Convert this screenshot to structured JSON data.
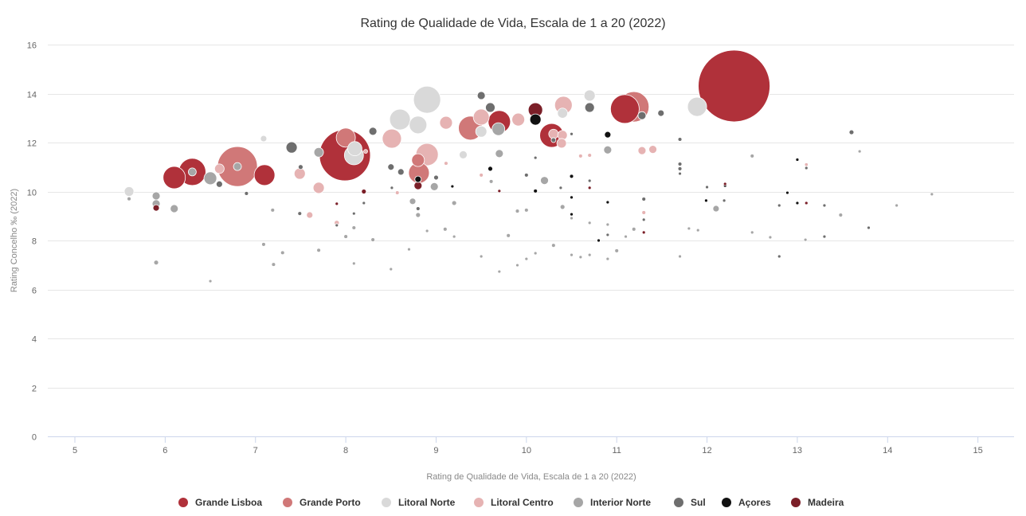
{
  "chart_data": {
    "type": "bubble",
    "title": "Rating de Qualidade de Vida, Escala de 1 a 20 (2022)",
    "xlabel": "Rating de Qualidade de Vida, Escala de 1 a 20 (2022)",
    "ylabel": "Rating Concelho ‰ (2022)",
    "xlim": [
      4.7,
      15.4
    ],
    "ylim": [
      0,
      16
    ],
    "xticks": [
      "5",
      "6",
      "7",
      "8",
      "9",
      "10",
      "11",
      "12",
      "13",
      "14",
      "15"
    ],
    "yticks": [
      "0",
      "2",
      "4",
      "6",
      "8",
      "10",
      "12",
      "14",
      "16"
    ],
    "grid": "horizontal",
    "legend": "bottom",
    "series": [
      {
        "name": "Grande Lisboa",
        "color": "#b0313a",
        "points": [
          [
            12.3,
            14.31,
            2025
          ],
          [
            7.99,
            11.48,
            1024
          ],
          [
            6.1,
            10.57,
            196
          ],
          [
            6.3,
            10.8,
            289
          ],
          [
            7.1,
            10.67,
            169
          ],
          [
            10.28,
            12.29,
            225
          ],
          [
            9.7,
            12.85,
            196
          ],
          [
            11.09,
            13.37,
            324
          ]
        ]
      },
      {
        "name": "Grande Porto",
        "color": "#d07878",
        "points": [
          [
            6.8,
            11.02,
            625
          ],
          [
            11.19,
            13.46,
            361
          ],
          [
            9.38,
            12.59,
            225
          ],
          [
            8.81,
            10.76,
            169
          ],
          [
            8.8,
            11.28,
            64
          ],
          [
            8.0,
            12.2,
            144
          ]
        ]
      },
      {
        "name": "Litoral Norte",
        "color": "#d9d9d9",
        "points": [
          [
            8.9,
            13.75,
            289
          ],
          [
            8.6,
            12.94,
            169
          ],
          [
            8.8,
            12.72,
            121
          ],
          [
            11.89,
            13.46,
            144
          ],
          [
            8.09,
            11.48,
            144
          ],
          [
            10.7,
            13.92,
            49
          ],
          [
            5.6,
            10.0,
            36
          ],
          [
            9.5,
            12.45,
            49
          ],
          [
            7.09,
            12.16,
            16
          ],
          [
            8.1,
            11.75,
            80
          ],
          [
            10.4,
            13.2,
            40
          ],
          [
            9.3,
            11.5,
            25
          ]
        ]
      },
      {
        "name": "Litoral Centro",
        "color": "#e6b3b3",
        "points": [
          [
            8.9,
            11.51,
            196
          ],
          [
            8.51,
            12.16,
            144
          ],
          [
            10.41,
            13.53,
            121
          ],
          [
            9.5,
            13.04,
            100
          ],
          [
            9.11,
            12.81,
            64
          ],
          [
            9.91,
            12.94,
            64
          ],
          [
            7.49,
            10.73,
            49
          ],
          [
            7.7,
            10.15,
            49
          ],
          [
            10.3,
            12.35,
            36
          ],
          [
            10.4,
            12.3,
            36
          ],
          [
            10.39,
            11.97,
            36
          ],
          [
            11.28,
            11.67,
            25
          ],
          [
            11.4,
            11.72,
            25
          ],
          [
            6.6,
            10.93,
            36
          ],
          [
            7.6,
            9.04,
            16
          ],
          [
            11.3,
            9.14,
            6
          ],
          [
            10.7,
            11.48,
            6
          ],
          [
            10.6,
            11.45,
            6
          ],
          [
            9.5,
            10.67,
            6
          ],
          [
            9.11,
            11.15,
            6
          ],
          [
            8.22,
            11.64,
            6
          ],
          [
            8.57,
            9.95,
            6
          ],
          [
            7.9,
            8.72,
            10
          ],
          [
            13.1,
            11.1,
            5
          ]
        ]
      },
      {
        "name": "Interior Norte",
        "color": "#a6a6a6",
        "points": [
          [
            6.5,
            10.54,
            64
          ],
          [
            6.8,
            11.02,
            25
          ],
          [
            6.3,
            10.8,
            25
          ],
          [
            6.1,
            9.3,
            25
          ],
          [
            5.9,
            9.82,
            25
          ],
          [
            5.9,
            9.5,
            25
          ],
          [
            7.7,
            11.6,
            36
          ],
          [
            9.69,
            12.55,
            64
          ],
          [
            9.7,
            11.55,
            25
          ],
          [
            8.74,
            9.6,
            16
          ],
          [
            8.98,
            10.2,
            25
          ],
          [
            10.2,
            10.45,
            25
          ],
          [
            10.9,
            11.7,
            25
          ],
          [
            12.1,
            9.3,
            16
          ],
          [
            5.9,
            7.1,
            9
          ],
          [
            6.5,
            6.34,
            4
          ],
          [
            7.2,
            7.02,
            6
          ],
          [
            7.09,
            7.84,
            6
          ],
          [
            7.3,
            7.5,
            6
          ],
          [
            7.19,
            9.24,
            6
          ],
          [
            7.7,
            7.6,
            6
          ],
          [
            8.0,
            8.16,
            6
          ],
          [
            8.09,
            8.52,
            6
          ],
          [
            8.09,
            7.06,
            4
          ],
          [
            8.3,
            8.03,
            6
          ],
          [
            8.5,
            6.83,
            4
          ],
          [
            8.7,
            7.64,
            4
          ],
          [
            8.8,
            9.04,
            9
          ],
          [
            8.9,
            8.39,
            4
          ],
          [
            9.1,
            8.46,
            6
          ],
          [
            9.2,
            8.16,
            4
          ],
          [
            9.5,
            7.35,
            4
          ],
          [
            9.7,
            6.73,
            4
          ],
          [
            9.8,
            8.2,
            6
          ],
          [
            9.9,
            6.99,
            4
          ],
          [
            10.0,
            7.25,
            4
          ],
          [
            10.1,
            7.48,
            4
          ],
          [
            10.3,
            7.8,
            6
          ],
          [
            10.5,
            7.41,
            4
          ],
          [
            10.6,
            7.32,
            4
          ],
          [
            10.7,
            7.41,
            4
          ],
          [
            10.9,
            7.25,
            4
          ],
          [
            11.0,
            7.58,
            6
          ],
          [
            11.1,
            8.16,
            4
          ],
          [
            11.19,
            8.46,
            6
          ],
          [
            11.7,
            7.35,
            4
          ],
          [
            11.8,
            8.49,
            4
          ],
          [
            11.9,
            8.42,
            4
          ],
          [
            12.5,
            8.33,
            4
          ],
          [
            12.7,
            8.13,
            4
          ],
          [
            13.09,
            8.03,
            4
          ],
          [
            13.48,
            9.04,
            6
          ],
          [
            14.1,
            9.43,
            4
          ],
          [
            14.49,
            9.89,
            4
          ],
          [
            13.69,
            11.64,
            4
          ],
          [
            12.5,
            11.45,
            6
          ],
          [
            10.0,
            9.24,
            6
          ],
          [
            9.9,
            9.2,
            6
          ],
          [
            10.4,
            9.37,
            9
          ],
          [
            10.5,
            8.91,
            4
          ],
          [
            10.7,
            8.72,
            4
          ],
          [
            10.9,
            8.65,
            4
          ],
          [
            9.61,
            10.41,
            6
          ],
          [
            9.2,
            9.53,
            9
          ],
          [
            5.6,
            9.7,
            6
          ]
        ]
      },
      {
        "name": "Sul",
        "color": "#6e6e6e",
        "points": [
          [
            7.4,
            11.8,
            49
          ],
          [
            9.6,
            13.43,
            36
          ],
          [
            10.7,
            13.43,
            36
          ],
          [
            9.5,
            13.92,
            25
          ],
          [
            8.3,
            12.46,
            25
          ],
          [
            8.5,
            11.0,
            16
          ],
          [
            8.61,
            10.8,
            16
          ],
          [
            11.28,
            13.1,
            25
          ],
          [
            11.49,
            13.2,
            16
          ],
          [
            13.6,
            12.42,
            9
          ],
          [
            6.6,
            10.3,
            16
          ],
          [
            7.5,
            11.0,
            9
          ],
          [
            12.8,
            7.35,
            4
          ],
          [
            13.3,
            8.16,
            4
          ],
          [
            13.79,
            8.52,
            4
          ],
          [
            11.7,
            10.93,
            6
          ],
          [
            11.7,
            11.12,
            6
          ],
          [
            11.7,
            10.73,
            4
          ],
          [
            11.7,
            12.13,
            6
          ],
          [
            12.0,
            10.18,
            4
          ],
          [
            13.1,
            10.96,
            4
          ],
          [
            12.8,
            9.43,
            4
          ],
          [
            13.3,
            9.43,
            4
          ],
          [
            12.19,
            9.63,
            4
          ],
          [
            10.7,
            10.44,
            4
          ],
          [
            11.3,
            9.69,
            6
          ],
          [
            11.3,
            8.85,
            4
          ],
          [
            11.3,
            8.33,
            4
          ],
          [
            10.9,
            8.23,
            4
          ],
          [
            10.38,
            10.15,
            4
          ],
          [
            10.0,
            10.67,
            6
          ],
          [
            10.1,
            11.38,
            4
          ],
          [
            9.0,
            10.57,
            9
          ],
          [
            8.8,
            9.3,
            6
          ],
          [
            8.51,
            10.15,
            4
          ],
          [
            8.2,
            9.53,
            4
          ],
          [
            8.09,
            9.1,
            4
          ],
          [
            7.9,
            8.62,
            4
          ],
          [
            7.49,
            9.1,
            6
          ],
          [
            6.9,
            9.92,
            6
          ],
          [
            10.3,
            12.1,
            9
          ],
          [
            10.5,
            12.35,
            4
          ]
        ]
      },
      {
        "name": "Açores",
        "color": "#111111",
        "points": [
          [
            10.1,
            12.94,
            49
          ],
          [
            10.9,
            12.32,
            16
          ],
          [
            8.8,
            10.5,
            16
          ],
          [
            9.6,
            10.93,
            9
          ],
          [
            10.5,
            10.62,
            6
          ],
          [
            13.0,
            11.3,
            4
          ],
          [
            10.5,
            9.07,
            4
          ],
          [
            10.9,
            9.56,
            4
          ],
          [
            11.99,
            9.63,
            4
          ],
          [
            12.2,
            10.24,
            4
          ],
          [
            12.89,
            9.95,
            4
          ],
          [
            13.0,
            9.53,
            4
          ],
          [
            10.8,
            8.0,
            4
          ],
          [
            10.1,
            10.02,
            6
          ],
          [
            9.18,
            10.21,
            4
          ],
          [
            10.5,
            9.76,
            4
          ]
        ]
      },
      {
        "name": "Madeira",
        "color": "#7b1f28",
        "points": [
          [
            10.1,
            13.33,
            81
          ],
          [
            5.9,
            9.33,
            16
          ],
          [
            8.8,
            10.24,
            25
          ],
          [
            8.2,
            10.0,
            9
          ],
          [
            7.9,
            9.5,
            4
          ],
          [
            10.7,
            10.15,
            4
          ],
          [
            11.3,
            8.33,
            4
          ],
          [
            12.2,
            10.31,
            4
          ],
          [
            13.1,
            9.53,
            4
          ],
          [
            9.7,
            10.02,
            4
          ]
        ]
      }
    ]
  }
}
